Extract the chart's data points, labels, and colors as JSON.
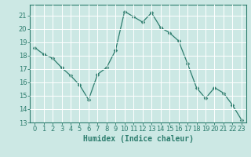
{
  "x": [
    0,
    1,
    2,
    3,
    4,
    5,
    6,
    7,
    8,
    9,
    10,
    11,
    12,
    13,
    14,
    15,
    16,
    17,
    18,
    19,
    20,
    21,
    22,
    23
  ],
  "y": [
    18.6,
    18.1,
    17.8,
    17.1,
    16.5,
    15.8,
    14.7,
    16.6,
    17.1,
    18.4,
    21.3,
    20.9,
    20.5,
    21.2,
    20.1,
    19.7,
    19.1,
    17.4,
    15.6,
    14.8,
    15.6,
    15.2,
    14.3,
    13.2
  ],
  "line_color": "#2d7d6e",
  "marker": "D",
  "marker_size": 2.5,
  "bg_color": "#cce8e4",
  "grid_color": "#ffffff",
  "xlabel": "Humidex (Indice chaleur)",
  "xlim": [
    -0.5,
    23.5
  ],
  "ylim": [
    13,
    21.8
  ],
  "yticks": [
    13,
    14,
    15,
    16,
    17,
    18,
    19,
    20,
    21
  ],
  "xticks": [
    0,
    1,
    2,
    3,
    4,
    5,
    6,
    7,
    8,
    9,
    10,
    11,
    12,
    13,
    14,
    15,
    16,
    17,
    18,
    19,
    20,
    21,
    22,
    23
  ],
  "tick_color": "#2d7d6e",
  "label_fontsize": 7,
  "tick_fontsize": 6
}
